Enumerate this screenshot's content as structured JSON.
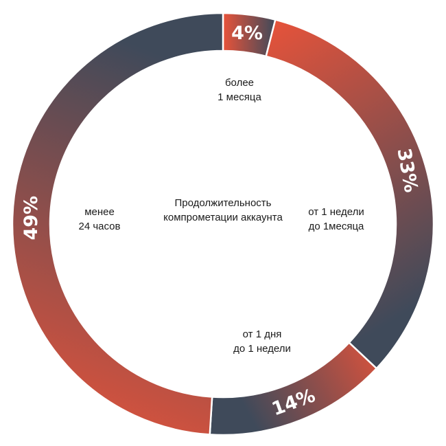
{
  "chart_data": {
    "type": "pie",
    "title": "Продолжительность компрометации аккаунта",
    "title_lines": [
      "Продолжительность",
      "компрометации аккаунта"
    ],
    "slices": [
      {
        "value": 4,
        "pct_label": "4%",
        "category_lines": [
          "более",
          "1 месяца"
        ]
      },
      {
        "value": 33,
        "pct_label": "33%",
        "category_lines": [
          "от 1 недели",
          "до 1месяца"
        ]
      },
      {
        "value": 14,
        "pct_label": "14%",
        "category_lines": [
          "от 1 дня",
          "до 1 недели"
        ]
      },
      {
        "value": 49,
        "pct_label": "49%",
        "category_lines": [
          "менее",
          "24 часов"
        ]
      }
    ],
    "donut": true,
    "colors": {
      "orange": "#e8533a",
      "slate": "#3f4a5a",
      "separator": "#ffffff"
    }
  }
}
